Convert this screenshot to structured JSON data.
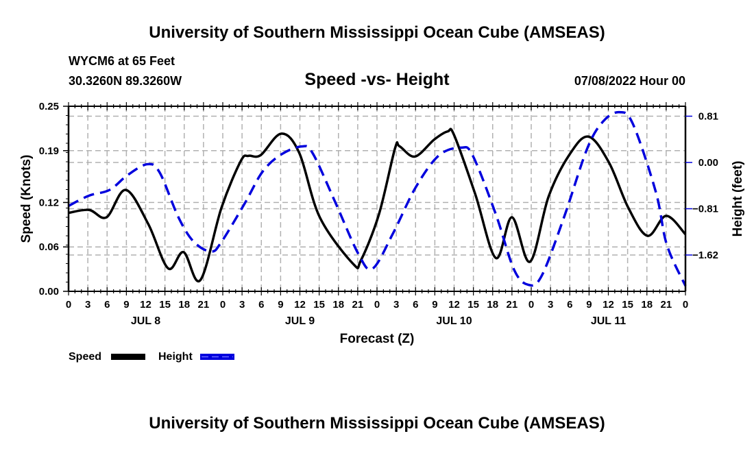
{
  "header": {
    "title_top": "University of Southern Mississippi Ocean Cube (AMSEAS)",
    "station": "WYCM6 at 65 Feet",
    "coords": "30.3260N  89.3260W",
    "date": "07/08/2022 Hour 00",
    "title_bottom": "University of Southern Mississippi Ocean Cube (AMSEAS)"
  },
  "colors": {
    "speed": "#000000",
    "height": "#0000dd",
    "grid": "#b0b0b0"
  },
  "chart_data": {
    "type": "line",
    "title": "Speed -vs- Height",
    "xlabel": "Forecast (Z)",
    "ylabel": "Speed (Knots)",
    "y2label": "Height (feet)",
    "xlim": [
      0,
      96
    ],
    "ylim": [
      0,
      0.25
    ],
    "y2lim": [
      -2.25,
      0.99
    ],
    "grid": true,
    "xtick_labels": [
      "0",
      "3",
      "6",
      "9",
      "12",
      "15",
      "18",
      "21",
      "0",
      "3",
      "6",
      "9",
      "12",
      "15",
      "18",
      "21",
      "0",
      "3",
      "6",
      "9",
      "12",
      "15",
      "18",
      "21",
      "0",
      "3",
      "6",
      "9",
      "12",
      "15",
      "18",
      "21",
      "0"
    ],
    "day_labels": [
      "JUL 8",
      "JUL 9",
      "JUL 10",
      "JUL 11"
    ],
    "yticks": [
      0.0,
      0.06,
      0.12,
      0.19,
      0.25
    ],
    "ytick_labels": [
      "0.00",
      "0.06",
      "0.12",
      "0.19",
      "0.25"
    ],
    "y2ticks": [
      0.81,
      0.0,
      -0.81,
      -1.62
    ],
    "y2tick_labels": [
      "0.81",
      "0.00",
      "−0.81",
      "−1.62"
    ],
    "legend": {
      "position": "bottom-left",
      "entries": [
        "Speed",
        "Height"
      ]
    },
    "series": [
      {
        "name": "Speed",
        "axis": "left",
        "style": "solid",
        "x": [
          0,
          3.2,
          5.9,
          8.9,
          12.4,
          15.5,
          17.9,
          20.5,
          23.8,
          26.8,
          28,
          29.9,
          33.1,
          35.9,
          39.1,
          44.3,
          45.5,
          48.3,
          50.8,
          51.5,
          53.9,
          56.9,
          59,
          60,
          63.3,
          66.5,
          69,
          71.8,
          74.7,
          77.9,
          80.9,
          84.1,
          87.1,
          90.1,
          93,
          96
        ],
        "values": [
          0.106,
          0.11,
          0.1,
          0.137,
          0.091,
          0.031,
          0.053,
          0.015,
          0.113,
          0.176,
          0.183,
          0.184,
          0.213,
          0.187,
          0.1,
          0.037,
          0.042,
          0.104,
          0.193,
          0.196,
          0.182,
          0.205,
          0.216,
          0.211,
          0.131,
          0.045,
          0.1,
          0.04,
          0.128,
          0.184,
          0.209,
          0.174,
          0.113,
          0.075,
          0.102,
          0.077
        ]
      },
      {
        "name": "Height",
        "axis": "right",
        "style": "dashed",
        "x": [
          0,
          3.2,
          6.4,
          9.2,
          12.3,
          14.2,
          17.1,
          19.5,
          22.2,
          23.8,
          27.4,
          30.2,
          33.1,
          36.3,
          38,
          41.6,
          45.1,
          47.3,
          50.5,
          54,
          57.6,
          61.1,
          62.9,
          66.5,
          69.3,
          71.5,
          73.6,
          77.1,
          80.7,
          83.2,
          85.7,
          87.8,
          91.4,
          93.1,
          96
        ],
        "values": [
          -0.76,
          -0.58,
          -0.48,
          -0.22,
          -0.03,
          -0.18,
          -0.96,
          -1.39,
          -1.56,
          -1.39,
          -0.72,
          -0.16,
          0.14,
          0.28,
          0.16,
          -0.72,
          -1.6,
          -1.86,
          -1.24,
          -0.44,
          0.12,
          0.26,
          0.12,
          -0.91,
          -1.87,
          -2.14,
          -1.99,
          -0.96,
          0.24,
          0.72,
          0.88,
          0.68,
          -0.52,
          -1.44,
          -2.16
        ]
      }
    ]
  }
}
